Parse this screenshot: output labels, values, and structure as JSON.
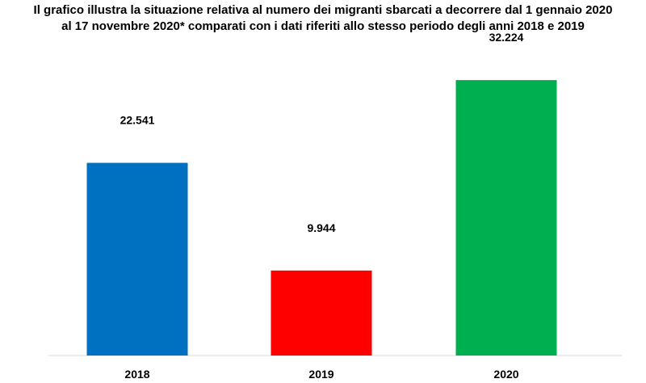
{
  "chart_data": {
    "type": "bar",
    "title": "Il grafico illustra la situazione relativa al numero dei migranti sbarcati a decorrere dal 1 gennaio 2020 al 17 novembre 2020* comparati con i dati riferiti allo stesso periodo degli anni 2018  e 2019",
    "categories": [
      "2018",
      "2019",
      "2020"
    ],
    "values": [
      22541,
      9944,
      32224
    ],
    "value_labels": [
      "22.541",
      "9.944",
      "32.224"
    ],
    "colors": [
      "#0070C0",
      "#FF0000",
      "#00B050"
    ],
    "ylim": [
      0,
      38000
    ],
    "grid": false,
    "legend": "none",
    "xlabel": "",
    "ylabel": ""
  }
}
